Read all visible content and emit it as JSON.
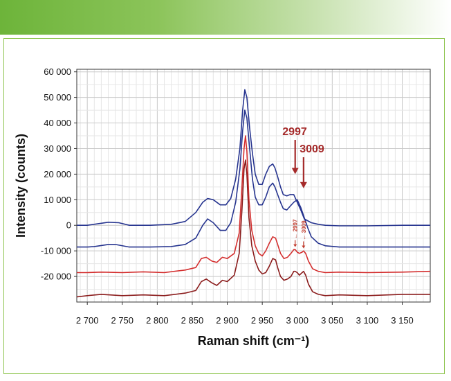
{
  "chart_data": {
    "type": "line",
    "xlabel": "Raman shift (cm⁻¹)",
    "ylabel": "Intensity (counts)",
    "xlim": [
      2685,
      3190
    ],
    "ylim": [
      -30000,
      61000
    ],
    "x_ticks": [
      2700,
      2750,
      2800,
      2850,
      2900,
      2950,
      3000,
      3050,
      3100,
      3150
    ],
    "x_tick_labels": [
      "2 700",
      "2 750",
      "2 800",
      "2 850",
      "2 900",
      "2 950",
      "3 000",
      "3 050",
      "3 100",
      "3 150"
    ],
    "y_ticks": [
      60000,
      50000,
      40000,
      30000,
      20000,
      10000,
      0,
      -10000,
      -20000
    ],
    "y_tick_labels": [
      "60 000",
      "50 000",
      "40 000",
      "30 000",
      "20 000",
      "10 000",
      "0",
      "-10 000",
      "-20 000"
    ],
    "grid": true,
    "series": [
      {
        "color": "#26348f",
        "x": [
          2685,
          2700,
          2720,
          2730,
          2745,
          2760,
          2790,
          2820,
          2840,
          2855,
          2865,
          2872,
          2880,
          2890,
          2898,
          2905,
          2912,
          2918,
          2922,
          2925,
          2928,
          2932,
          2936,
          2940,
          2945,
          2950,
          2955,
          2960,
          2965,
          2968,
          2972,
          2976,
          2980,
          2985,
          2990,
          2995,
          3000,
          3005,
          3010,
          3020,
          3030,
          3040,
          3060,
          3100,
          3150,
          3190
        ],
        "y": [
          0,
          0,
          800,
          1200,
          1000,
          0,
          0,
          400,
          1500,
          5000,
          9000,
          10500,
          10000,
          8000,
          8000,
          10500,
          18000,
          30000,
          45000,
          53000,
          50000,
          38000,
          28000,
          20000,
          16000,
          16000,
          20000,
          23000,
          24000,
          22500,
          19000,
          15000,
          12000,
          11500,
          12000,
          12000,
          9000,
          6000,
          2500,
          1000,
          400,
          0,
          -200,
          -200,
          0,
          0
        ]
      },
      {
        "color": "#26348f",
        "x": [
          2685,
          2700,
          2710,
          2730,
          2740,
          2760,
          2790,
          2820,
          2840,
          2855,
          2865,
          2872,
          2880,
          2890,
          2898,
          2905,
          2912,
          2918,
          2922,
          2925,
          2928,
          2932,
          2936,
          2940,
          2945,
          2950,
          2955,
          2960,
          2965,
          2968,
          2972,
          2976,
          2980,
          2985,
          2990,
          2995,
          3000,
          3005,
          3010,
          3015,
          3020,
          3030,
          3040,
          3060,
          3100,
          3150,
          3190
        ],
        "y": [
          -8500,
          -8500,
          -8300,
          -7500,
          -7500,
          -8500,
          -8500,
          -8300,
          -7500,
          -5000,
          0,
          2500,
          1000,
          -2000,
          -2000,
          1000,
          9000,
          22000,
          37000,
          45000,
          42000,
          30000,
          18000,
          11000,
          8000,
          8000,
          11000,
          15000,
          16500,
          15000,
          12000,
          9000,
          6500,
          6000,
          7500,
          9000,
          10000,
          7000,
          3000,
          -1000,
          -4500,
          -7000,
          -8000,
          -8500,
          -8500,
          -8500,
          -8500
        ]
      },
      {
        "color": "#d42f2f",
        "x": [
          2685,
          2700,
          2720,
          2750,
          2780,
          2810,
          2840,
          2855,
          2863,
          2870,
          2878,
          2885,
          2893,
          2900,
          2910,
          2917,
          2921,
          2924,
          2926,
          2928,
          2931,
          2935,
          2940,
          2945,
          2950,
          2955,
          2960,
          2965,
          2969,
          2972,
          2976,
          2981,
          2986,
          2991,
          2995,
          2997,
          3000,
          3003,
          3007,
          3009,
          3012,
          3016,
          3022,
          3030,
          3040,
          3060,
          3100,
          3150,
          3190
        ],
        "y": [
          -18500,
          -18500,
          -18300,
          -18500,
          -18200,
          -18500,
          -17500,
          -16500,
          -13000,
          -12500,
          -14000,
          -14500,
          -12500,
          -13000,
          -11000,
          -3000,
          15000,
          30000,
          35000,
          29000,
          10000,
          -2000,
          -8000,
          -11000,
          -12000,
          -10000,
          -7000,
          -4500,
          -5000,
          -7500,
          -11000,
          -13000,
          -12500,
          -11000,
          -9500,
          -9500,
          -10500,
          -11000,
          -10500,
          -10000,
          -11000,
          -14000,
          -17000,
          -18000,
          -18500,
          -18300,
          -18500,
          -18300,
          -18000
        ]
      },
      {
        "color": "#8b1c1c",
        "x": [
          2685,
          2700,
          2720,
          2750,
          2780,
          2810,
          2840,
          2855,
          2863,
          2870,
          2878,
          2885,
          2893,
          2900,
          2910,
          2917,
          2921,
          2924,
          2926,
          2928,
          2931,
          2935,
          2940,
          2945,
          2950,
          2955,
          2960,
          2965,
          2969,
          2972,
          2976,
          2981,
          2986,
          2991,
          2995,
          2997,
          3000,
          3003,
          3007,
          3009,
          3012,
          3016,
          3022,
          3030,
          3040,
          3060,
          3100,
          3150,
          3190
        ],
        "y": [
          -28000,
          -27500,
          -27000,
          -27500,
          -27200,
          -27500,
          -26500,
          -25500,
          -22000,
          -21000,
          -22500,
          -23500,
          -21500,
          -22000,
          -19500,
          -11000,
          6000,
          22000,
          25500,
          20000,
          3000,
          -8000,
          -14000,
          -17500,
          -19000,
          -18500,
          -16000,
          -13000,
          -13500,
          -16500,
          -20000,
          -21500,
          -21000,
          -20000,
          -18000,
          -18000,
          -18500,
          -19500,
          -18500,
          -18000,
          -19500,
          -23000,
          -26000,
          -27000,
          -27500,
          -27200,
          -27500,
          -27000,
          -27000
        ]
      }
    ],
    "annotations": [
      {
        "text": "2997",
        "x": 2997,
        "size": "large",
        "color": "#a52a2a",
        "arrow_tip_y": 20000
      },
      {
        "text": "3009",
        "x": 3009,
        "size": "large",
        "color": "#a52a2a",
        "arrow_tip_y": 14500
      },
      {
        "text": "2997",
        "x": 2997,
        "size": "small",
        "color": "#c0392b",
        "arrow_tip_y": -8500
      },
      {
        "text": "3009",
        "x": 3009,
        "size": "small",
        "color": "#c0392b",
        "arrow_tip_y": -9000
      }
    ]
  }
}
